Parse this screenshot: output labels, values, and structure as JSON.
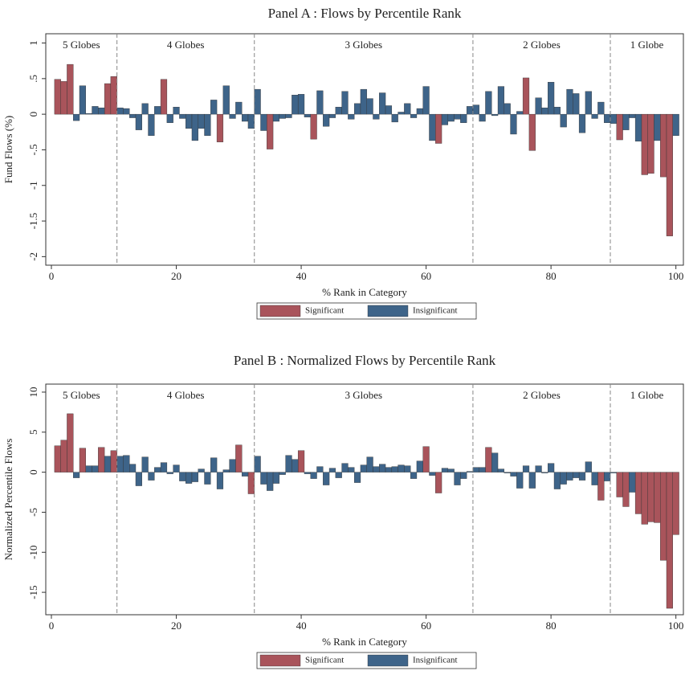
{
  "chart_data": [
    {
      "type": "bar",
      "title": "Panel A : Flows by Percentile Rank",
      "xlabel": "% Rank in Category",
      "ylabel": "Fund Flows (%)",
      "x": [
        1,
        2,
        3,
        4,
        5,
        6,
        7,
        8,
        9,
        10,
        11,
        12,
        13,
        14,
        15,
        16,
        17,
        18,
        19,
        20,
        21,
        22,
        23,
        24,
        25,
        26,
        27,
        28,
        29,
        30,
        31,
        32,
        33,
        34,
        35,
        36,
        37,
        38,
        39,
        40,
        41,
        42,
        43,
        44,
        45,
        46,
        47,
        48,
        49,
        50,
        51,
        52,
        53,
        54,
        55,
        56,
        57,
        58,
        59,
        60,
        61,
        62,
        63,
        64,
        65,
        66,
        67,
        68,
        69,
        70,
        71,
        72,
        73,
        74,
        75,
        76,
        77,
        78,
        79,
        80,
        81,
        82,
        83,
        84,
        85,
        86,
        87,
        88,
        89,
        90,
        91,
        92,
        93,
        94,
        95,
        96,
        97,
        98,
        99,
        100
      ],
      "series": [
        {
          "name": "Significant",
          "color": "#a9545b",
          "values": [
            0.49,
            0.46,
            0.7,
            null,
            null,
            null,
            null,
            null,
            0.43,
            0.53,
            null,
            null,
            null,
            null,
            null,
            null,
            null,
            0.49,
            null,
            null,
            null,
            null,
            null,
            null,
            null,
            null,
            -0.39,
            null,
            null,
            null,
            null,
            null,
            null,
            null,
            -0.49,
            null,
            null,
            null,
            null,
            null,
            null,
            -0.35,
            null,
            null,
            null,
            null,
            null,
            null,
            null,
            null,
            null,
            null,
            null,
            null,
            null,
            null,
            null,
            null,
            null,
            null,
            null,
            -0.41,
            null,
            null,
            null,
            null,
            null,
            null,
            null,
            null,
            null,
            null,
            null,
            null,
            null,
            0.51,
            -0.51,
            null,
            null,
            null,
            null,
            null,
            null,
            null,
            null,
            null,
            null,
            null,
            null,
            null,
            -0.36,
            null,
            null,
            null,
            -0.85,
            -0.83,
            null,
            -0.88,
            -1.71,
            null
          ]
        },
        {
          "name": "Insignificant",
          "color": "#3e6489",
          "values": [
            null,
            null,
            null,
            -0.09,
            0.4,
            0.01,
            0.11,
            0.09,
            null,
            null,
            0.09,
            0.08,
            -0.05,
            -0.22,
            0.15,
            -0.3,
            0.11,
            null,
            -0.12,
            0.1,
            -0.06,
            -0.2,
            -0.37,
            -0.2,
            -0.3,
            0.2,
            null,
            0.4,
            -0.06,
            0.17,
            -0.1,
            -0.2,
            0.35,
            -0.23,
            null,
            -0.1,
            -0.06,
            -0.05,
            0.27,
            0.28,
            -0.04,
            null,
            0.33,
            -0.17,
            -0.05,
            0.1,
            0.32,
            -0.07,
            0.15,
            0.35,
            0.22,
            -0.07,
            0.3,
            0.12,
            -0.11,
            0.03,
            0.15,
            -0.05,
            0.08,
            0.39,
            -0.37,
            null,
            -0.15,
            -0.1,
            -0.07,
            -0.12,
            0.11,
            0.13,
            -0.1,
            0.32,
            -0.02,
            0.39,
            0.15,
            -0.28,
            0.04,
            null,
            null,
            0.23,
            0.09,
            0.45,
            0.1,
            -0.18,
            0.35,
            0.29,
            -0.26,
            0.32,
            -0.06,
            0.17,
            -0.12,
            -0.13,
            null,
            -0.22,
            -0.05,
            -0.38,
            null,
            null,
            -0.37,
            null,
            null,
            -0.3
          ]
        }
      ],
      "xlim": [
        -0.9,
        101.2
      ],
      "xticks": [
        0,
        20,
        40,
        60,
        80,
        100
      ],
      "ylim": [
        -2.12,
        1.13
      ],
      "yticks": [
        -2,
        -1.5,
        -1,
        {
          "value": -0.5,
          "label": "-.5"
        },
        0,
        {
          "value": 0.5,
          "label": ".5"
        },
        1
      ],
      "dividers": [
        10.5,
        32.5,
        67.5,
        89.5
      ],
      "region_labels": [
        "5 Globes",
        "4 Globes",
        "3 Globes",
        "2 Globes",
        "1 Globe"
      ],
      "legend": "bottom"
    },
    {
      "type": "bar",
      "title": "Panel B : Normalized Flows by  Percentile Rank",
      "xlabel": "% Rank in Category",
      "ylabel": "Normalized Percentile Flows",
      "x": [
        1,
        2,
        3,
        4,
        5,
        6,
        7,
        8,
        9,
        10,
        11,
        12,
        13,
        14,
        15,
        16,
        17,
        18,
        19,
        20,
        21,
        22,
        23,
        24,
        25,
        26,
        27,
        28,
        29,
        30,
        31,
        32,
        33,
        34,
        35,
        36,
        37,
        38,
        39,
        40,
        41,
        42,
        43,
        44,
        45,
        46,
        47,
        48,
        49,
        50,
        51,
        52,
        53,
        54,
        55,
        56,
        57,
        58,
        59,
        60,
        61,
        62,
        63,
        64,
        65,
        66,
        67,
        68,
        69,
        70,
        71,
        72,
        73,
        74,
        75,
        76,
        77,
        78,
        79,
        80,
        81,
        82,
        83,
        84,
        85,
        86,
        87,
        88,
        89,
        90,
        91,
        92,
        93,
        94,
        95,
        96,
        97,
        98,
        99,
        100
      ],
      "series": [
        {
          "name": "Significant",
          "color": "#a9545b",
          "values": [
            3.3,
            4,
            7.3,
            null,
            3,
            null,
            null,
            3.1,
            null,
            2.7,
            null,
            null,
            null,
            null,
            null,
            null,
            null,
            null,
            null,
            null,
            null,
            null,
            null,
            null,
            null,
            null,
            null,
            null,
            null,
            3.4,
            null,
            -2.7,
            null,
            null,
            null,
            null,
            null,
            null,
            null,
            2.7,
            null,
            null,
            null,
            null,
            null,
            null,
            null,
            null,
            null,
            null,
            null,
            null,
            null,
            null,
            null,
            null,
            null,
            null,
            null,
            3.2,
            null,
            -2.6,
            null,
            null,
            null,
            null,
            null,
            null,
            null,
            3.1,
            null,
            null,
            null,
            null,
            null,
            null,
            null,
            null,
            null,
            null,
            null,
            null,
            null,
            null,
            null,
            null,
            null,
            -3.5,
            null,
            null,
            -3.1,
            -4.3,
            null,
            -5.2,
            -6.5,
            -6.2,
            -6.3,
            -11,
            -17,
            -7.8
          ]
        },
        {
          "name": "Insignificant",
          "color": "#3e6489",
          "values": [
            null,
            null,
            null,
            -0.7,
            null,
            0.8,
            0.8,
            null,
            2,
            null,
            2,
            2.1,
            1,
            -1.7,
            1.9,
            -1,
            0.6,
            1.2,
            -0.2,
            0.9,
            -1.1,
            -1.4,
            -1.2,
            0.4,
            -1.5,
            1.8,
            -2.1,
            0.3,
            1.6,
            null,
            -0.5,
            null,
            2,
            -1.5,
            -2.3,
            -1.4,
            -0.3,
            2.1,
            1.6,
            null,
            -0.2,
            -0.8,
            0.7,
            -1.6,
            0.5,
            -0.7,
            1.1,
            0.6,
            -1.3,
            0.9,
            1.9,
            0.7,
            1,
            0.6,
            0.7,
            0.9,
            0.8,
            -0.8,
            1.4,
            null,
            -0.4,
            null,
            0.5,
            0.4,
            -1.6,
            -0.8,
            0.1,
            0.6,
            0.6,
            null,
            2.4,
            0.4,
            -0.1,
            -0.5,
            -2,
            0.8,
            -2,
            0.8,
            -0.1,
            1.1,
            -2.1,
            -1.5,
            -1,
            -0.7,
            -1,
            1.3,
            -1.6,
            null,
            -1.1,
            -0.1,
            null,
            null,
            -2.5,
            null,
            null,
            null,
            null,
            null,
            null,
            null
          ]
        }
      ],
      "xlim": [
        -0.9,
        101.2
      ],
      "xticks": [
        0,
        20,
        40,
        60,
        80,
        100
      ],
      "ylim": [
        -17.8,
        11
      ],
      "yticks": [
        -15,
        -10,
        -5,
        0,
        5,
        10
      ],
      "dividers": [
        10.5,
        32.5,
        67.5,
        89.5
      ],
      "region_labels": [
        "5 Globes",
        "4 Globes",
        "3 Globes",
        "2 Globes",
        "1 Globe"
      ],
      "legend": "bottom"
    }
  ]
}
